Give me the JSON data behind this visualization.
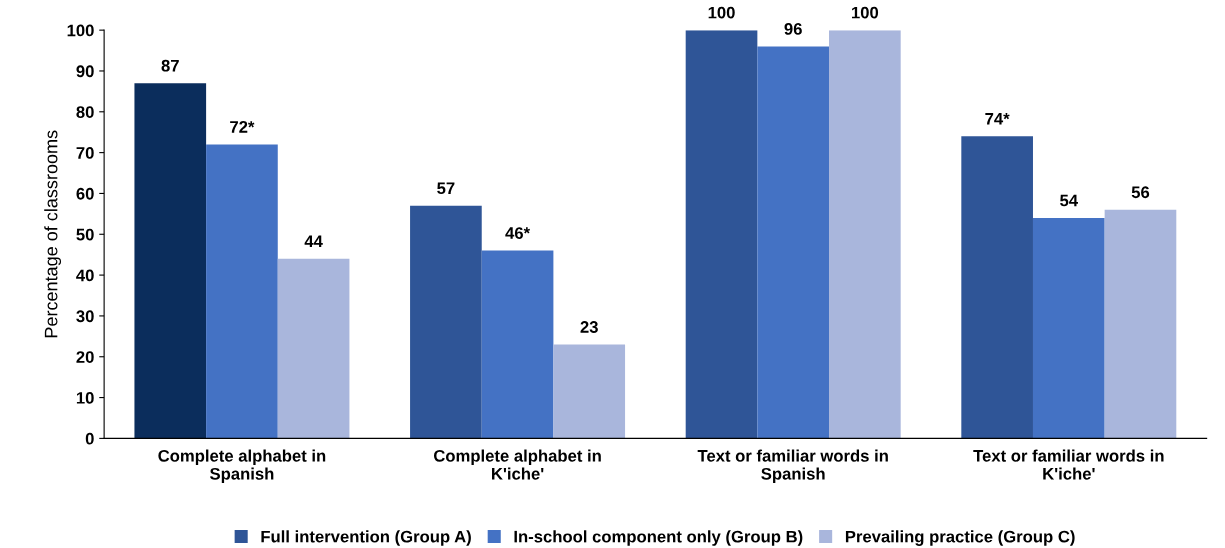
{
  "chart_data": {
    "type": "bar",
    "ylabel": "Percentage of classrooms",
    "categories": [
      "Complete alphabet in\nSpanish",
      "Complete alphabet in\nK'iche'",
      "Text or familiar words in\nSpanish",
      "Text or familiar words in\nK'iche'"
    ],
    "series": [
      {
        "name": "Full intervention (Group A)",
        "color": "#2f5597",
        "colors": [
          "#0b2d5c",
          "#2f5597",
          "#2f5597",
          "#2f5597"
        ],
        "values": [
          87,
          57,
          100,
          74
        ],
        "value_labels": [
          "87",
          "57",
          "100",
          "74*"
        ]
      },
      {
        "name": "In-school component only (Group B)",
        "color": "#4472c4",
        "values": [
          72,
          46,
          96,
          54
        ],
        "value_labels": [
          "72*",
          "46*",
          "96",
          "54"
        ]
      },
      {
        "name": "Prevailing practice (Group C)",
        "color": "#a9b6dc",
        "values": [
          44,
          23,
          100,
          56
        ],
        "value_labels": [
          "44",
          "23",
          "100",
          "56"
        ]
      }
    ],
    "ylim": [
      0,
      100
    ],
    "yticks": [
      0,
      10,
      20,
      30,
      40,
      50,
      60,
      70,
      80,
      90,
      100
    ],
    "legend": "bottom",
    "grid": false
  }
}
